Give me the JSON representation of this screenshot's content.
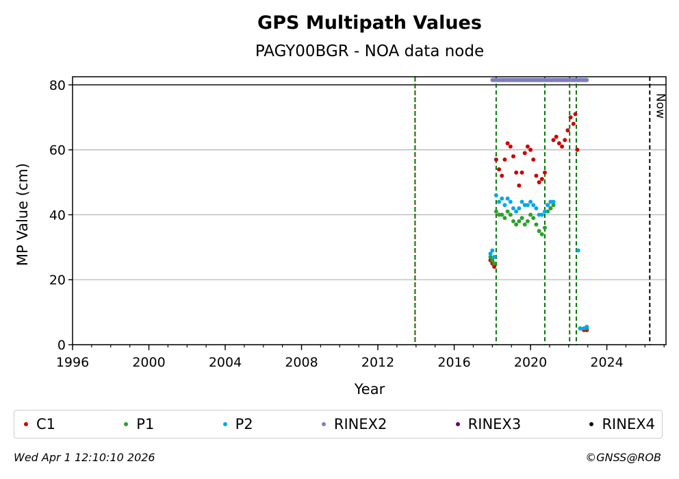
{
  "chart_data": {
    "type": "scatter",
    "title": "GPS Multipath Values",
    "subtitle": "PAGY00BGR - NOA data node",
    "xlabel": "Year",
    "ylabel": "MP Value (cm)",
    "xlim": [
      1996,
      2027.1
    ],
    "ylim": [
      0,
      82.5
    ],
    "xticks": [
      "1996",
      "2000",
      "2004",
      "2008",
      "2012",
      "2016",
      "2020",
      "2024"
    ],
    "yticks": [
      "0",
      "20",
      "40",
      "60",
      "80"
    ],
    "grid": "horizontal",
    "legend": "bottom",
    "now_label": "Now",
    "now_year": 2026.25,
    "event_lines": [
      {
        "year": 2013.95,
        "color": "#cc0000",
        "style": "dotted"
      },
      {
        "year": 2013.95,
        "color": "#007700",
        "style": "dashed"
      },
      {
        "year": 2018.2,
        "color": "#007700",
        "style": "dashed"
      },
      {
        "year": 2020.75,
        "color": "#007700",
        "style": "dashed"
      },
      {
        "year": 2022.05,
        "color": "#007700",
        "style": "dashed"
      },
      {
        "year": 2022.4,
        "color": "#007700",
        "style": "dashed"
      }
    ],
    "series": [
      {
        "name": "C1",
        "color": "#cc0000",
        "x": [
          2017.9,
          2018.0,
          2018.1,
          2018.2,
          2018.35,
          2018.5,
          2018.65,
          2018.8,
          2018.95,
          2019.1,
          2019.25,
          2019.4,
          2019.55,
          2019.7,
          2019.85,
          2020.0,
          2020.15,
          2020.3,
          2020.45,
          2020.6,
          2020.75,
          2020.9,
          2021.05,
          2021.2,
          2021.35,
          2021.5,
          2021.65,
          2021.8,
          2021.95,
          2022.1,
          2022.25,
          2022.35,
          2022.45,
          2022.6,
          2022.8,
          2022.95
        ],
        "y": [
          26,
          25,
          24,
          57,
          54,
          52,
          57,
          62,
          61,
          58,
          53,
          49,
          53,
          59,
          61,
          60,
          57,
          52,
          50,
          51,
          53,
          43,
          42,
          63,
          64,
          62,
          61,
          63,
          66,
          70,
          68,
          71,
          60,
          5,
          4.5,
          4.5
        ]
      },
      {
        "name": "P1",
        "color": "#2ca02c",
        "x": [
          2017.9,
          2018.0,
          2018.1,
          2018.2,
          2018.35,
          2018.5,
          2018.65,
          2018.8,
          2018.95,
          2019.1,
          2019.25,
          2019.4,
          2019.55,
          2019.7,
          2019.85,
          2020.0,
          2020.15,
          2020.3,
          2020.45,
          2020.6,
          2020.75,
          2020.9,
          2021.05,
          2021.2,
          2022.6,
          2022.8,
          2022.95
        ],
        "y": [
          27,
          26,
          25,
          41,
          40,
          40,
          39,
          41,
          40,
          38,
          37,
          38,
          39,
          37,
          38,
          40,
          39,
          37,
          35,
          34,
          36,
          41,
          42,
          43,
          5,
          5,
          5
        ]
      },
      {
        "name": "P2",
        "color": "#00a8e8",
        "x": [
          2017.9,
          2018.0,
          2018.1,
          2018.2,
          2018.35,
          2018.5,
          2018.65,
          2018.8,
          2018.95,
          2019.1,
          2019.25,
          2019.4,
          2019.55,
          2019.7,
          2019.85,
          2020.0,
          2020.15,
          2020.3,
          2020.45,
          2020.6,
          2020.75,
          2020.9,
          2021.05,
          2021.2,
          2022.5,
          2022.6,
          2022.8,
          2022.95
        ],
        "y": [
          28,
          29,
          27,
          46,
          44,
          45,
          43,
          45,
          44,
          42,
          41,
          42,
          44,
          43,
          43,
          44,
          43,
          42,
          40,
          40,
          41,
          43,
          44,
          44,
          29,
          5,
          5,
          5.5
        ]
      },
      {
        "name": "RINEX2",
        "color": "#7f7fbf",
        "x": [
          2018.0,
          2022.95
        ],
        "y": [
          81.5,
          81.5
        ]
      },
      {
        "name": "RINEX3",
        "color": "#660066",
        "x": [],
        "y": []
      },
      {
        "name": "RINEX4",
        "color": "#1a0022",
        "x": [],
        "y": []
      }
    ]
  },
  "footer": {
    "timestamp": "Wed Apr  1 12:10:10 2026",
    "credit": "©GNSS@ROB"
  }
}
